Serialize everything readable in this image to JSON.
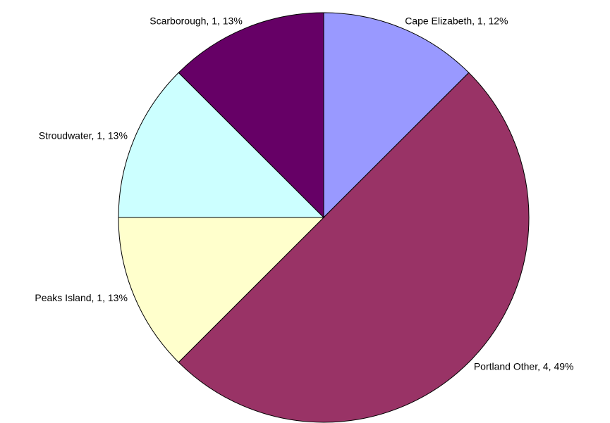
{
  "chart_data": {
    "type": "pie",
    "value_labels": [
      "Cape Elizabeth, 1, 12%",
      "Portland Other, 4, 49%",
      "Peaks Island, 1, 13%",
      "Stroudwater, 1, 13%",
      "Scarborough, 1, 13%"
    ],
    "values": [
      1,
      4,
      1,
      1,
      1
    ],
    "colors": [
      "#9999ff",
      "#993366",
      "#ffffcc",
      "#ccffff",
      "#660066"
    ]
  }
}
